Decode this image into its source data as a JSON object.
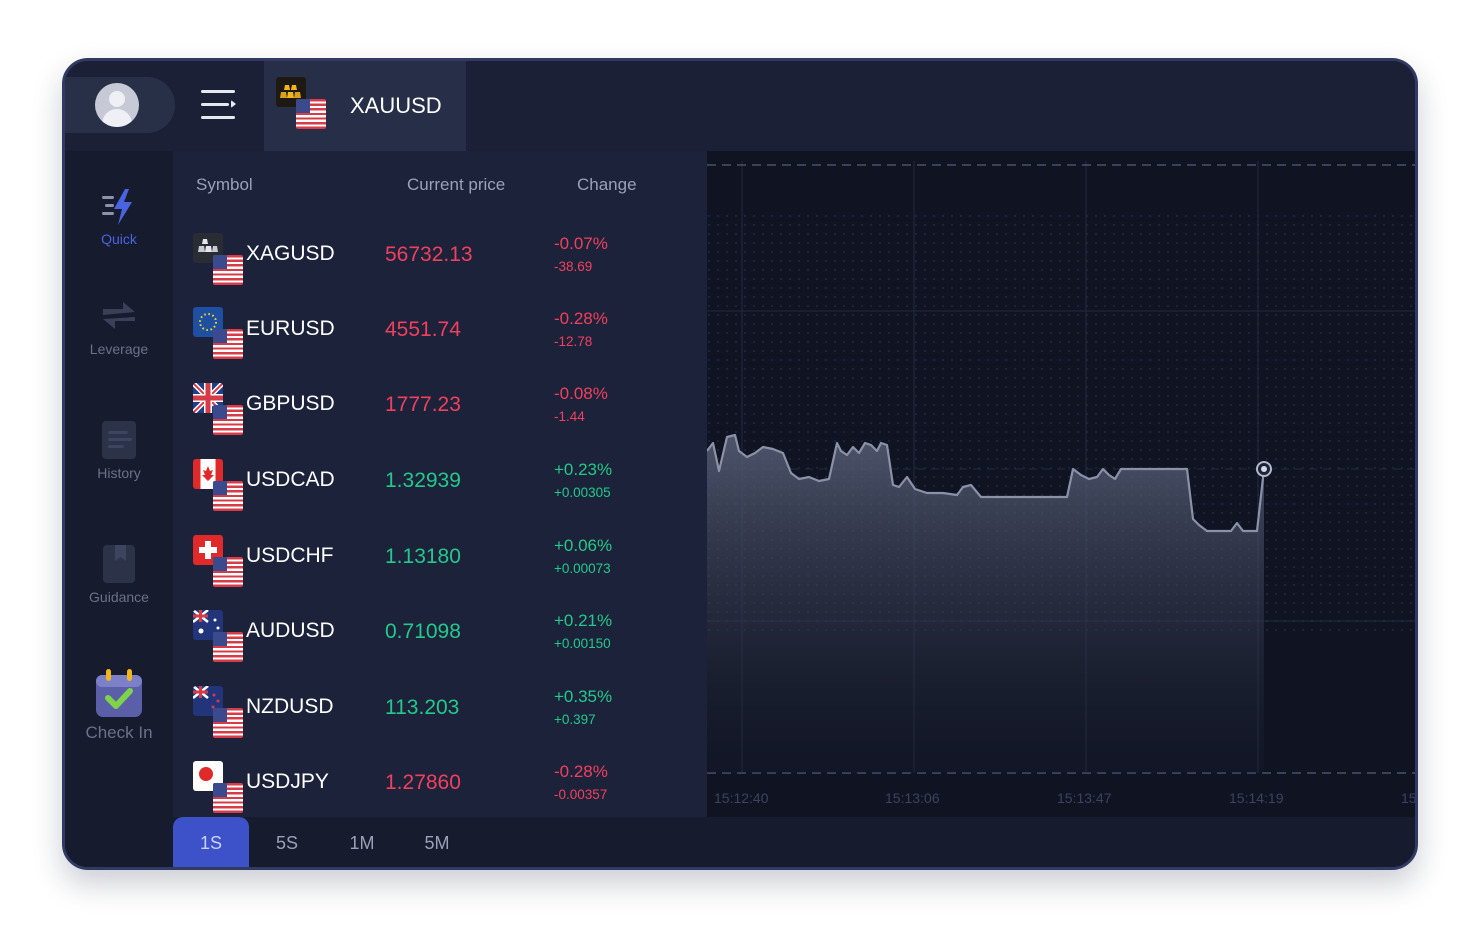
{
  "colors": {
    "accent": "#3d52c9",
    "negative": "#f0405e",
    "positive": "#22c98a",
    "panel": "#1c223a",
    "device_frame": "#303a63"
  },
  "header": {
    "active_symbol": "XAUUSD",
    "menu_icon": "menu-icon",
    "avatar_icon": "user-avatar-icon"
  },
  "sidebar": {
    "items": [
      {
        "label": "Quick",
        "icon": "lightning-icon",
        "active": true
      },
      {
        "label": "Leverage",
        "icon": "swap-arrows-icon",
        "active": false
      },
      {
        "label": "History",
        "icon": "document-icon",
        "active": false
      },
      {
        "label": "Guidance",
        "icon": "bookmark-icon",
        "active": false
      },
      {
        "label": "Check In",
        "icon": "calendar-check-icon",
        "active": false
      }
    ]
  },
  "symbol_list": {
    "headers": {
      "symbol": "Symbol",
      "price": "Current price",
      "change": "Change"
    },
    "rows": [
      {
        "symbol": "XAGUSD",
        "price": "56732.13",
        "change_pct": "-0.07%",
        "change_abs": "-38.69",
        "direction": "down",
        "base": "silver"
      },
      {
        "symbol": "EURUSD",
        "price": "4551.74",
        "change_pct": "-0.28%",
        "change_abs": "-12.78",
        "direction": "down",
        "base": "eu"
      },
      {
        "symbol": "GBPUSD",
        "price": "1777.23",
        "change_pct": "-0.08%",
        "change_abs": "-1.44",
        "direction": "down",
        "base": "gb"
      },
      {
        "symbol": "USDCAD",
        "price": "1.32939",
        "change_pct": "+0.23%",
        "change_abs": "+0.00305",
        "direction": "up",
        "base": "ca"
      },
      {
        "symbol": "USDCHF",
        "price": "1.13180",
        "change_pct": "+0.06%",
        "change_abs": "+0.00073",
        "direction": "up",
        "base": "ch"
      },
      {
        "symbol": "AUDUSD",
        "price": "0.71098",
        "change_pct": "+0.21%",
        "change_abs": "+0.00150",
        "direction": "up",
        "base": "au"
      },
      {
        "symbol": "NZDUSD",
        "price": "113.203",
        "change_pct": "+0.35%",
        "change_abs": "+0.397",
        "direction": "up",
        "base": "nz"
      },
      {
        "symbol": "USDJPY",
        "price": "1.27860",
        "change_pct": "-0.28%",
        "change_abs": "-0.00357",
        "direction": "down",
        "base": "jp"
      }
    ]
  },
  "timeframes": [
    {
      "label": "1S",
      "active": true
    },
    {
      "label": "5S",
      "active": false
    },
    {
      "label": "1M",
      "active": false
    },
    {
      "label": "5M",
      "active": false
    }
  ],
  "chart_data": {
    "type": "area",
    "x_labels": [
      "15:12:40",
      "15:13:06",
      "15:13:47",
      "15:14:19",
      "15"
    ],
    "y_axis": "unlabeled",
    "series_line": "price path ending at a current-price marker"
  }
}
